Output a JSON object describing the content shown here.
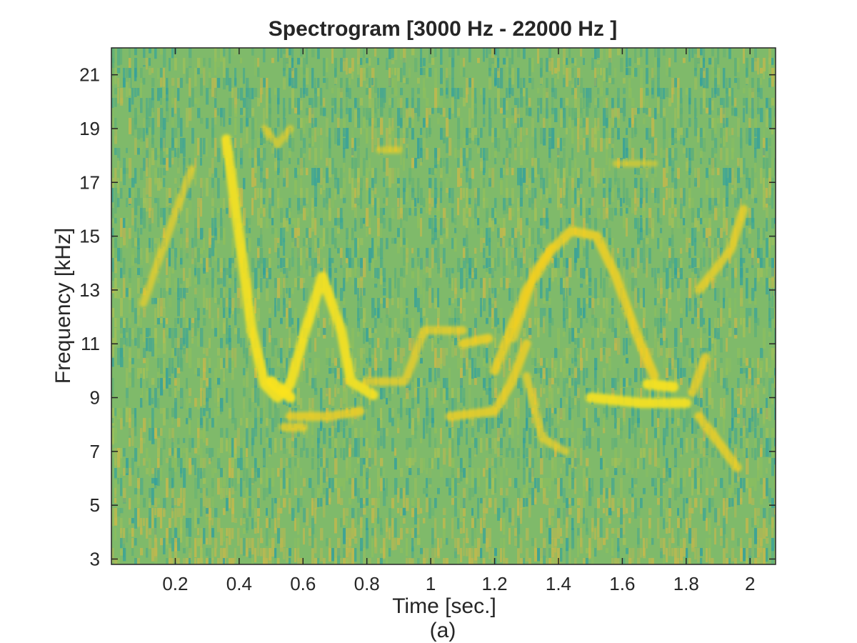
{
  "chart_data": {
    "type": "heatmap",
    "title": "Spectrogram [3000 Hz - 22000 Hz ]",
    "xlabel": "Time [sec.]",
    "ylabel": "Frequency [kHz]",
    "caption": "(a)",
    "xlim": [
      0,
      2.08
    ],
    "ylim": [
      2.8,
      22
    ],
    "x_ticks": [
      0.2,
      0.4,
      0.6,
      0.8,
      1,
      1.2,
      1.4,
      1.6,
      1.8,
      2
    ],
    "x_tick_labels": [
      "0.2",
      "0.4",
      "0.6",
      "0.8",
      "1",
      "1.2",
      "1.4",
      "1.6",
      "1.8",
      "2"
    ],
    "y_ticks": [
      3,
      5,
      7,
      9,
      11,
      13,
      15,
      17,
      19,
      21
    ],
    "y_tick_labels": [
      "3",
      "5",
      "7",
      "9",
      "11",
      "13",
      "15",
      "17",
      "19",
      "21"
    ],
    "grid": false,
    "colors": {
      "background_noise": "#7fba6a",
      "noise_low": "#2f9fa0",
      "noise_high": "#c9b84a",
      "ridge": "#f5d020",
      "ridge_bright": "#fbe31e",
      "axis": "#262626"
    },
    "ridges": [
      {
        "points": [
          [
            0.1,
            12.5
          ],
          [
            0.25,
            17.5
          ]
        ],
        "intensity": 0.55
      },
      {
        "points": [
          [
            0.36,
            18.6
          ],
          [
            0.44,
            11.5
          ],
          [
            0.48,
            9.5
          ],
          [
            0.52,
            9.0
          ],
          [
            0.56,
            9.5
          ],
          [
            0.6,
            11.2
          ],
          [
            0.66,
            13.5
          ],
          [
            0.72,
            11.5
          ],
          [
            0.75,
            9.6
          ],
          [
            0.82,
            9.1
          ]
        ],
        "intensity": 0.9
      },
      {
        "points": [
          [
            0.5,
            9.6
          ],
          [
            0.56,
            9.0
          ]
        ],
        "intensity": 1.0
      },
      {
        "points": [
          [
            0.56,
            8.3
          ],
          [
            0.68,
            8.3
          ],
          [
            0.78,
            8.5
          ]
        ],
        "intensity": 0.75
      },
      {
        "points": [
          [
            0.54,
            7.9
          ],
          [
            0.6,
            7.9
          ]
        ],
        "intensity": 0.7
      },
      {
        "points": [
          [
            0.8,
            9.6
          ],
          [
            0.92,
            9.6
          ],
          [
            0.98,
            11.5
          ],
          [
            1.1,
            11.5
          ]
        ],
        "intensity": 0.65
      },
      {
        "points": [
          [
            1.1,
            11.0
          ],
          [
            1.18,
            11.2
          ]
        ],
        "intensity": 0.8
      },
      {
        "points": [
          [
            1.06,
            8.3
          ],
          [
            1.2,
            8.5
          ],
          [
            1.25,
            9.5
          ],
          [
            1.3,
            11.0
          ]
        ],
        "intensity": 0.75
      },
      {
        "points": [
          [
            1.2,
            10.0
          ],
          [
            1.3,
            13.0
          ],
          [
            1.38,
            14.5
          ],
          [
            1.44,
            15.2
          ],
          [
            1.52,
            15.0
          ],
          [
            1.58,
            13.5
          ],
          [
            1.64,
            11.5
          ],
          [
            1.7,
            9.8
          ]
        ],
        "intensity": 0.8
      },
      {
        "points": [
          [
            1.3,
            9.8
          ],
          [
            1.35,
            7.5
          ],
          [
            1.42,
            7.0
          ]
        ],
        "intensity": 0.6
      },
      {
        "points": [
          [
            1.26,
            11.2
          ],
          [
            1.33,
            13.8
          ],
          [
            1.38,
            14.6
          ]
        ],
        "intensity": 0.6
      },
      {
        "points": [
          [
            1.5,
            9.0
          ],
          [
            1.66,
            8.8
          ],
          [
            1.8,
            8.8
          ]
        ],
        "intensity": 0.9
      },
      {
        "points": [
          [
            1.68,
            9.5
          ],
          [
            1.76,
            9.4
          ]
        ],
        "intensity": 0.95
      },
      {
        "points": [
          [
            1.82,
            9.2
          ],
          [
            1.86,
            10.5
          ]
        ],
        "intensity": 0.75
      },
      {
        "points": [
          [
            1.84,
            8.3
          ],
          [
            1.96,
            6.4
          ]
        ],
        "intensity": 0.75
      },
      {
        "points": [
          [
            1.84,
            13.0
          ],
          [
            1.94,
            14.5
          ],
          [
            1.98,
            16.0
          ]
        ],
        "intensity": 0.7
      },
      {
        "points": [
          [
            0.48,
            19.0
          ],
          [
            0.52,
            18.4
          ],
          [
            0.56,
            19.0
          ]
        ],
        "intensity": 0.45
      },
      {
        "points": [
          [
            0.84,
            18.2
          ],
          [
            0.9,
            18.2
          ]
        ],
        "intensity": 0.45
      },
      {
        "points": [
          [
            1.58,
            17.7
          ],
          [
            1.7,
            17.7
          ]
        ],
        "intensity": 0.4
      }
    ]
  }
}
